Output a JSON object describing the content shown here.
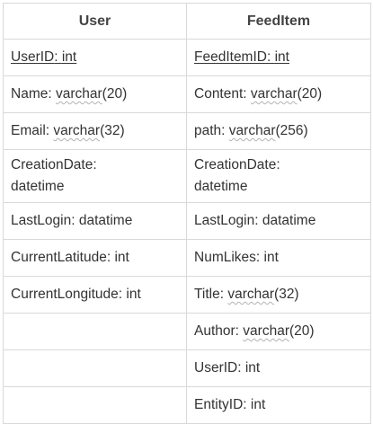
{
  "tables": {
    "user": {
      "title": "User",
      "fields": [
        {
          "name": "UserID",
          "sep": ": ",
          "type": "int",
          "pk": true
        },
        {
          "name": "Name",
          "sep": ": ",
          "type": "varchar",
          "suffix": "(20)"
        },
        {
          "name": "Email",
          "sep": ": ",
          "type": "varchar",
          "suffix": "(32)"
        },
        {
          "name": "CreationDate:",
          "line2": "datetime"
        },
        {
          "name": "LastLogin",
          "sep": ": ",
          "type": "datatime"
        },
        {
          "name": "CurrentLatitude",
          "sep": ": ",
          "type": "int"
        },
        {
          "name": "CurrentLongitude",
          "sep": ": ",
          "type": "int"
        }
      ]
    },
    "feeditem": {
      "title": "FeedItem",
      "fields": [
        {
          "name": "FeedItemID",
          "sep": ": ",
          "type": "int",
          "pk": true
        },
        {
          "name": "Content",
          "sep": ": ",
          "type": "varchar",
          "suffix": "(20)"
        },
        {
          "name": "path",
          "sep": ": ",
          "type": "varchar",
          "suffix": "(256)"
        },
        {
          "name": "CreationDate:",
          "line2": "datetime"
        },
        {
          "name": "LastLogin",
          "sep": ": ",
          "type": "datatime"
        },
        {
          "name": "NumLikes",
          "sep": ": ",
          "type": "int"
        },
        {
          "name": "Title",
          "sep": ": ",
          "type": "varchar",
          "suffix": "(32)"
        },
        {
          "name": "Author",
          "sep": ": ",
          "type": "varchar",
          "suffix": "(20)"
        },
        {
          "name": "UserID",
          "sep": ": ",
          "type": "int"
        },
        {
          "name": "EntityID",
          "sep": ": ",
          "type": "int"
        }
      ]
    }
  }
}
